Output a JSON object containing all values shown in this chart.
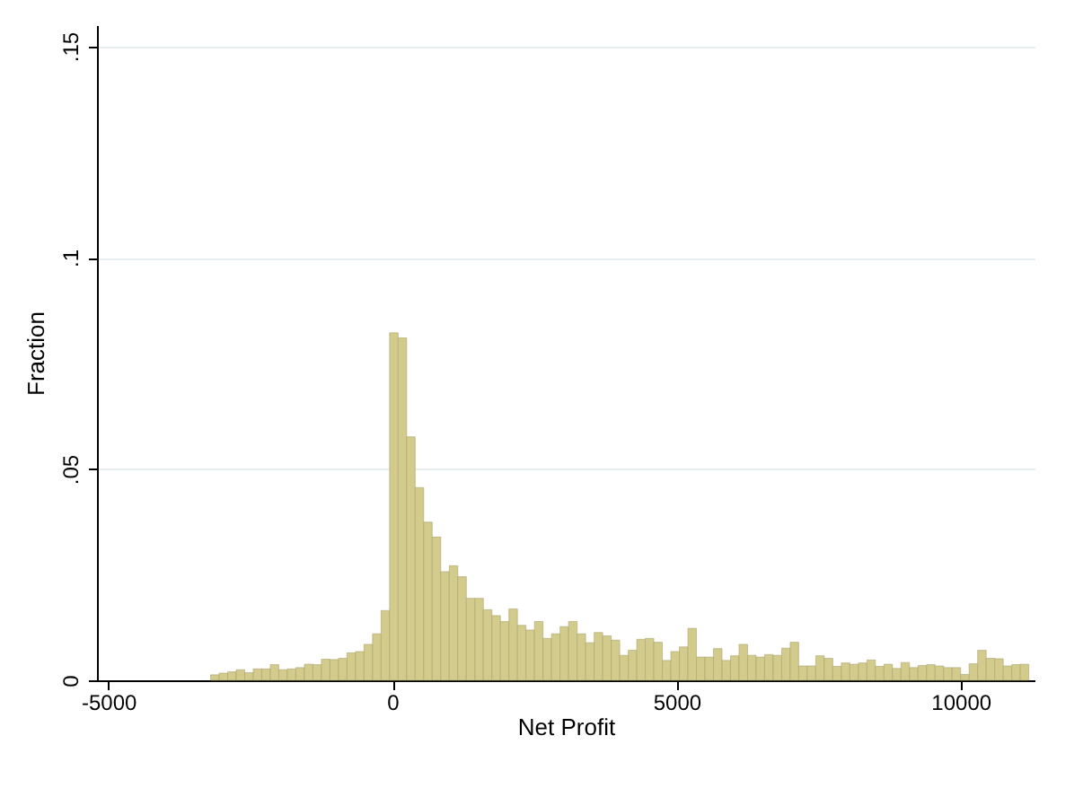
{
  "chart_data": {
    "type": "histogram",
    "xlabel": "Net Profit",
    "ylabel": "Fraction",
    "color": "#d2cb8c",
    "bins": [
      -3200,
      -3050,
      -2900,
      -2750,
      -2600,
      -2450,
      -2300,
      -2150,
      -2000,
      -1850,
      -1700,
      -1550,
      -1400,
      -1250,
      -1100,
      -950,
      -800,
      -650,
      -500,
      -350,
      -200,
      -50,
      100,
      250,
      400,
      550,
      700,
      850,
      1000,
      1150,
      1300,
      1450,
      1600,
      1750,
      1900,
      2050,
      2200,
      2350,
      2500,
      2650,
      2800,
      2950,
      3100,
      3250,
      3400,
      3550,
      3700,
      3850,
      4000,
      4150,
      4300,
      4450,
      4600,
      4750,
      4900,
      5050,
      5200,
      5350,
      5500,
      5650,
      5800,
      5950,
      6100,
      6250,
      6400,
      6550,
      6700,
      6850,
      7000,
      7150,
      7300,
      7450,
      7600,
      7750,
      7900,
      8050,
      8200,
      8350,
      8500,
      8650,
      8800,
      8950,
      9100,
      9250,
      9400,
      9550,
      9700,
      9850,
      10000,
      10150,
      10300,
      10450,
      10600,
      10750,
      10900,
      11050,
      11200
    ],
    "values": [
      0.0013,
      0.0017,
      0.002,
      0.0025,
      0.0018,
      0.0027,
      0.0027,
      0.0037,
      0.0025,
      0.0027,
      0.003,
      0.0038,
      0.0037,
      0.005,
      0.0049,
      0.0052,
      0.0065,
      0.0068,
      0.0085,
      0.011,
      0.0165,
      0.0822,
      0.081,
      0.0576,
      0.0456,
      0.0374,
      0.0339,
      0.0257,
      0.0271,
      0.0245,
      0.0194,
      0.0194,
      0.0167,
      0.0153,
      0.0139,
      0.0169,
      0.013,
      0.0119,
      0.0139,
      0.0099,
      0.011,
      0.0127,
      0.0139,
      0.011,
      0.0089,
      0.0113,
      0.0105,
      0.0095,
      0.0059,
      0.0071,
      0.0097,
      0.0099,
      0.009,
      0.0047,
      0.0068,
      0.0079,
      0.0123,
      0.0055,
      0.0055,
      0.0075,
      0.0047,
      0.0058,
      0.0085,
      0.0059,
      0.0055,
      0.0061,
      0.0059,
      0.0076,
      0.009,
      0.0034,
      0.0034,
      0.0058,
      0.0052,
      0.0033,
      0.0041,
      0.0038,
      0.0041,
      0.0048,
      0.0033,
      0.0038,
      0.0028,
      0.0042,
      0.003,
      0.0035,
      0.0037,
      0.0034,
      0.003,
      0.003,
      0.0014,
      0.0039,
      0.0071,
      0.0052,
      0.0051,
      0.0034,
      0.0037,
      0.0038
    ],
    "xlim": [
      -5200,
      11300
    ],
    "xticks": [
      -5000,
      0,
      5000,
      10000
    ],
    "ylim": [
      0,
      0.155
    ],
    "yticks": [
      0,
      {
        "value": 0.05,
        "label": ".05"
      },
      {
        "value": 0.1,
        "label": ".1"
      },
      {
        "value": 0.15,
        "label": ".15"
      }
    ],
    "grid": "y"
  }
}
